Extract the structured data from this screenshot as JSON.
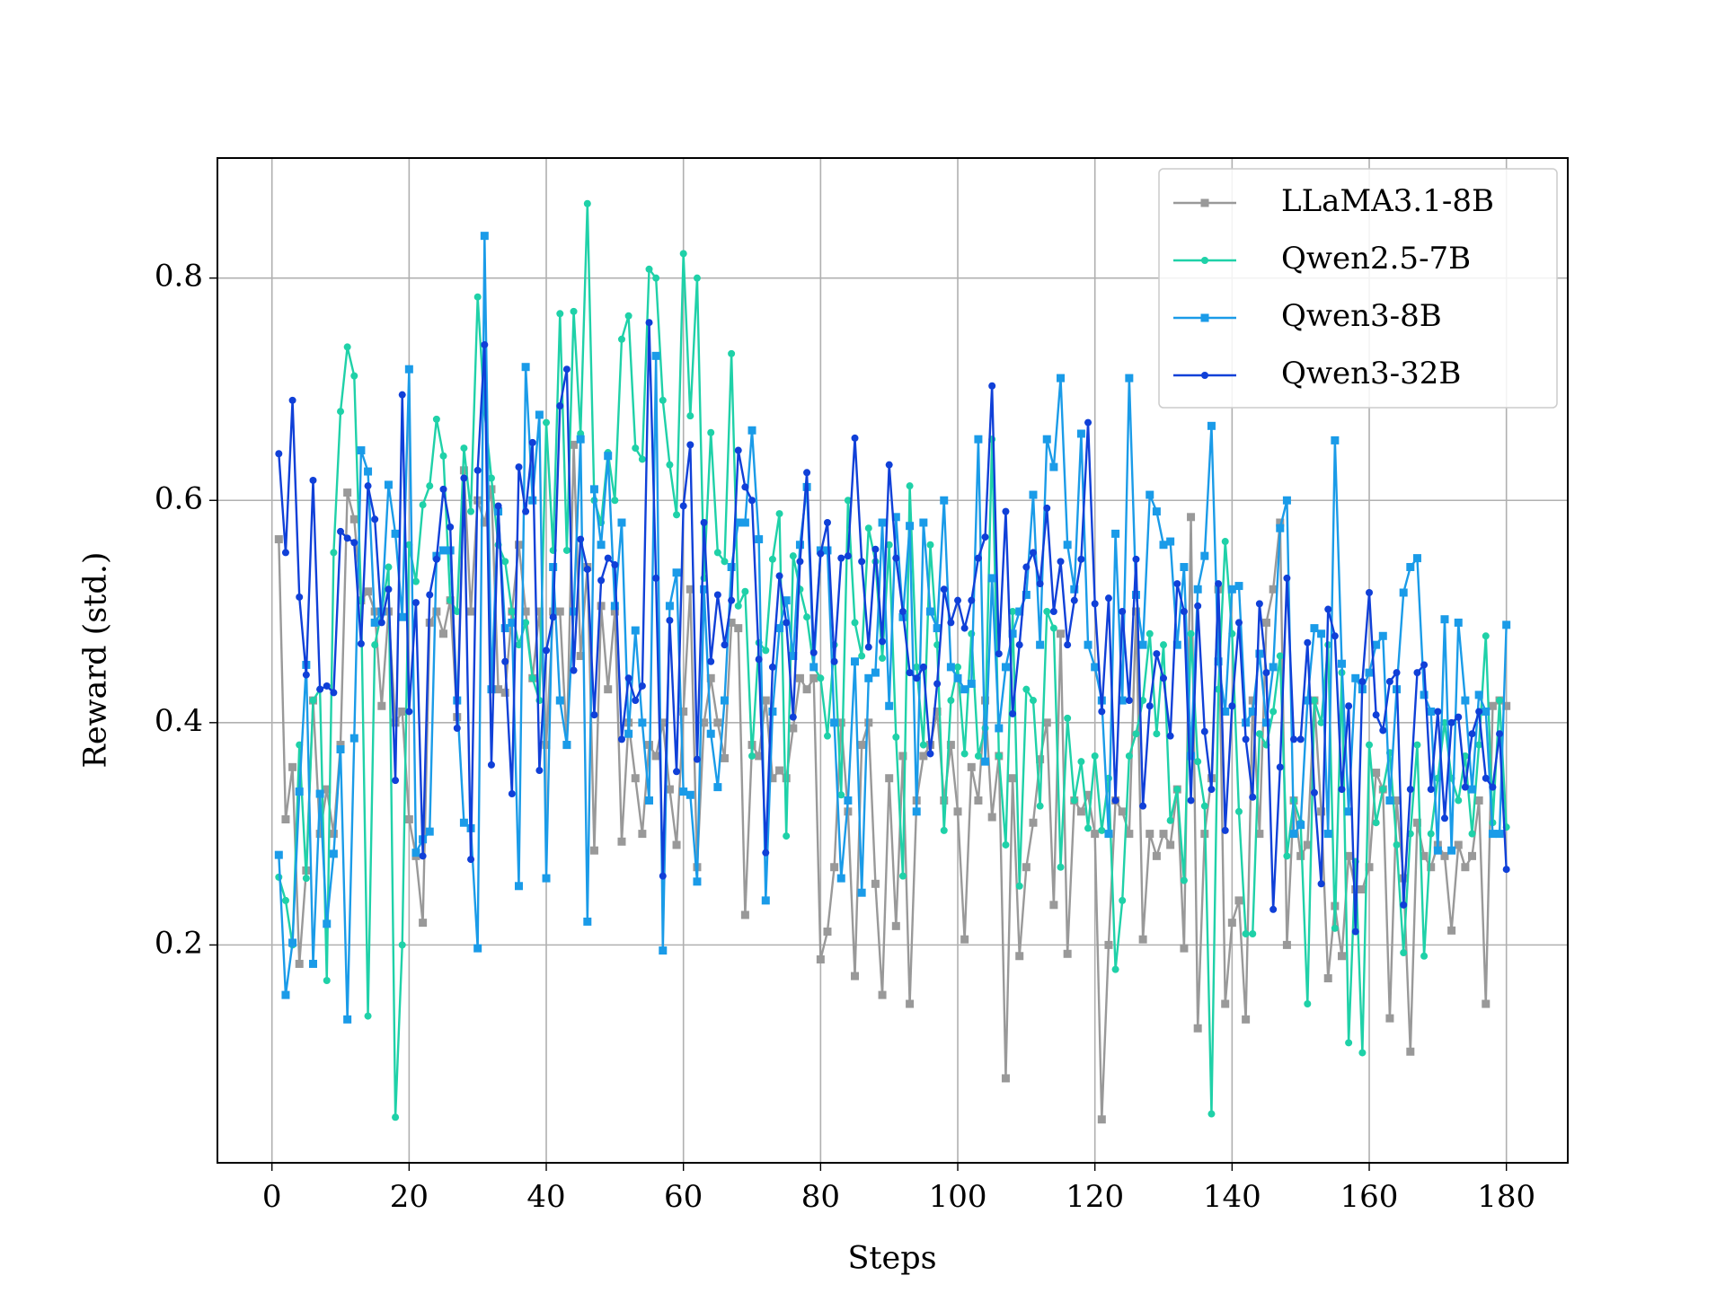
{
  "chart_data": {
    "type": "line",
    "xlabel": "Steps",
    "ylabel": "Reward (std.)",
    "xlim": [
      -7.95,
      188.95
    ],
    "ylim": [
      0.004,
      0.908
    ],
    "xticks": [
      0,
      20,
      40,
      60,
      80,
      100,
      120,
      140,
      160,
      180
    ],
    "yticks": [
      0.2,
      0.4,
      0.6,
      0.8
    ],
    "grid": true,
    "legend": "upper right",
    "x": [
      1,
      2,
      3,
      4,
      5,
      6,
      7,
      8,
      9,
      10,
      11,
      12,
      13,
      14,
      15,
      16,
      17,
      18,
      19,
      20,
      21,
      22,
      23,
      24,
      25,
      26,
      27,
      28,
      29,
      30,
      31,
      32,
      33,
      34,
      35,
      36,
      37,
      38,
      39,
      40,
      41,
      42,
      43,
      44,
      45,
      46,
      47,
      48,
      49,
      50,
      51,
      52,
      53,
      54,
      55,
      56,
      57,
      58,
      59,
      60,
      61,
      62,
      63,
      64,
      65,
      66,
      67,
      68,
      69,
      70,
      71,
      72,
      73,
      74,
      75,
      76,
      77,
      78,
      79,
      80,
      81,
      82,
      83,
      84,
      85,
      86,
      87,
      88,
      89,
      90,
      91,
      92,
      93,
      94,
      95,
      96,
      97,
      98,
      99,
      100,
      101,
      102,
      103,
      104,
      105,
      106,
      107,
      108,
      109,
      110,
      111,
      112,
      113,
      114,
      115,
      116,
      117,
      118,
      119,
      120,
      121,
      122,
      123,
      124,
      125,
      126,
      127,
      128,
      129,
      130,
      131,
      132,
      133,
      134,
      135,
      136,
      137,
      138,
      139,
      140,
      141,
      142,
      143,
      144,
      145,
      146,
      147,
      148,
      149,
      150,
      151,
      152,
      153,
      154,
      155,
      156,
      157,
      158,
      159,
      160,
      161,
      162,
      163,
      164,
      165,
      166,
      167,
      168,
      169,
      170,
      171,
      172,
      173,
      174,
      175,
      176,
      177,
      178,
      179,
      180
    ],
    "series": [
      {
        "name": "LLaMA3.1-8B",
        "color": "#999999",
        "marker": "square",
        "values": [
          0.565,
          0.313,
          0.36,
          0.183,
          0.267,
          0.42,
          0.3,
          0.34,
          0.3,
          0.38,
          0.607,
          0.583,
          0.51,
          0.518,
          0.5,
          0.415,
          0.5,
          0.4,
          0.41,
          0.313,
          0.28,
          0.22,
          0.49,
          0.5,
          0.48,
          0.51,
          0.405,
          0.627,
          0.5,
          0.6,
          0.58,
          0.61,
          0.43,
          0.427,
          0.5,
          0.56,
          0.5,
          0.44,
          0.5,
          0.38,
          0.5,
          0.5,
          0.38,
          0.65,
          0.46,
          0.54,
          0.285,
          0.505,
          0.43,
          0.5,
          0.293,
          0.4,
          0.35,
          0.3,
          0.38,
          0.37,
          0.4,
          0.34,
          0.29,
          0.41,
          0.52,
          0.27,
          0.4,
          0.44,
          0.4,
          0.368,
          0.49,
          0.485,
          0.227,
          0.38,
          0.37,
          0.42,
          0.35,
          0.357,
          0.35,
          0.395,
          0.44,
          0.43,
          0.44,
          0.187,
          0.212,
          0.27,
          0.4,
          0.32,
          0.172,
          0.38,
          0.4,
          0.255,
          0.155,
          0.35,
          0.217,
          0.37,
          0.147,
          0.33,
          0.37,
          0.38,
          0.41,
          0.33,
          0.38,
          0.32,
          0.205,
          0.36,
          0.33,
          0.42,
          0.315,
          0.37,
          0.08,
          0.35,
          0.19,
          0.27,
          0.31,
          0.367,
          0.4,
          0.236,
          0.48,
          0.192,
          0.33,
          0.32,
          0.335,
          0.3,
          0.043,
          0.2,
          0.33,
          0.32,
          0.3,
          0.5,
          0.205,
          0.3,
          0.28,
          0.3,
          0.29,
          0.34,
          0.197,
          0.585,
          0.125,
          0.3,
          0.35,
          0.52,
          0.147,
          0.22,
          0.24,
          0.133,
          0.42,
          0.3,
          0.49,
          0.52,
          0.58,
          0.2,
          0.33,
          0.28,
          0.29,
          0.42,
          0.32,
          0.17,
          0.235,
          0.19,
          0.28,
          0.25,
          0.25,
          0.27,
          0.355,
          0.34,
          0.134,
          0.33,
          0.26,
          0.104,
          0.31,
          0.28,
          0.27,
          0.29,
          0.28,
          0.213,
          0.29,
          0.27,
          0.28,
          0.33,
          0.147,
          0.415,
          0.42,
          0.415
        ]
      },
      {
        "name": "Qwen2.5-7B",
        "color": "#1fd1a8",
        "marker": "circle",
        "values": [
          0.261,
          0.24,
          0.2,
          0.38,
          0.26,
          0.42,
          0.43,
          0.168,
          0.553,
          0.68,
          0.738,
          0.712,
          0.51,
          0.136,
          0.47,
          0.5,
          0.54,
          0.045,
          0.2,
          0.56,
          0.527,
          0.596,
          0.613,
          0.673,
          0.64,
          0.51,
          0.5,
          0.647,
          0.59,
          0.783,
          0.68,
          0.62,
          0.56,
          0.545,
          0.5,
          0.47,
          0.49,
          0.44,
          0.42,
          0.67,
          0.555,
          0.768,
          0.555,
          0.77,
          0.66,
          0.867,
          0.6,
          0.58,
          0.643,
          0.6,
          0.745,
          0.766,
          0.647,
          0.637,
          0.808,
          0.8,
          0.69,
          0.632,
          0.587,
          0.822,
          0.676,
          0.8,
          0.53,
          0.661,
          0.553,
          0.545,
          0.732,
          0.505,
          0.518,
          0.37,
          0.472,
          0.465,
          0.547,
          0.588,
          0.298,
          0.55,
          0.52,
          0.495,
          0.45,
          0.44,
          0.388,
          0.47,
          0.335,
          0.6,
          0.49,
          0.46,
          0.575,
          0.545,
          0.458,
          0.56,
          0.387,
          0.262,
          0.613,
          0.45,
          0.38,
          0.56,
          0.47,
          0.303,
          0.42,
          0.45,
          0.372,
          0.48,
          0.37,
          0.395,
          0.655,
          0.37,
          0.29,
          0.5,
          0.253,
          0.43,
          0.42,
          0.325,
          0.5,
          0.485,
          0.27,
          0.404,
          0.33,
          0.365,
          0.305,
          0.37,
          0.303,
          0.35,
          0.178,
          0.24,
          0.37,
          0.39,
          0.42,
          0.48,
          0.39,
          0.47,
          0.312,
          0.34,
          0.258,
          0.48,
          0.365,
          0.325,
          0.048,
          0.43,
          0.563,
          0.48,
          0.32,
          0.21,
          0.21,
          0.39,
          0.38,
          0.41,
          0.46,
          0.28,
          0.33,
          0.31,
          0.147,
          0.42,
          0.4,
          0.47,
          0.215,
          0.445,
          0.112,
          0.275,
          0.103,
          0.38,
          0.31,
          0.34,
          0.373,
          0.29,
          0.193,
          0.3,
          0.38,
          0.19,
          0.3,
          0.35,
          0.4,
          0.35,
          0.33,
          0.37,
          0.3,
          0.38,
          0.478,
          0.31,
          0.42,
          0.306
        ]
      },
      {
        "name": "Qwen3-8B",
        "color": "#1a9be8",
        "marker": "square",
        "values": [
          0.281,
          0.155,
          0.202,
          0.338,
          0.452,
          0.183,
          0.336,
          0.219,
          0.282,
          0.376,
          0.133,
          0.386,
          0.645,
          0.626,
          0.49,
          0.5,
          0.614,
          0.57,
          0.495,
          0.718,
          0.283,
          0.295,
          0.302,
          0.55,
          0.555,
          0.555,
          0.42,
          0.31,
          0.305,
          0.197,
          0.838,
          0.43,
          0.59,
          0.485,
          0.49,
          0.253,
          0.72,
          0.6,
          0.677,
          0.26,
          0.54,
          0.42,
          0.38,
          0.5,
          0.655,
          0.221,
          0.61,
          0.56,
          0.64,
          0.505,
          0.58,
          0.39,
          0.483,
          0.4,
          0.33,
          0.73,
          0.195,
          0.505,
          0.535,
          0.338,
          0.335,
          0.257,
          0.52,
          0.39,
          0.342,
          0.42,
          0.54,
          0.58,
          0.58,
          0.663,
          0.565,
          0.24,
          0.41,
          0.485,
          0.51,
          0.46,
          0.56,
          0.612,
          0.45,
          0.555,
          0.555,
          0.4,
          0.26,
          0.33,
          0.455,
          0.247,
          0.44,
          0.445,
          0.58,
          0.415,
          0.585,
          0.495,
          0.577,
          0.32,
          0.58,
          0.5,
          0.485,
          0.6,
          0.45,
          0.44,
          0.43,
          0.435,
          0.655,
          0.365,
          0.53,
          0.395,
          0.45,
          0.48,
          0.5,
          0.515,
          0.605,
          0.47,
          0.655,
          0.63,
          0.71,
          0.56,
          0.52,
          0.66,
          0.47,
          0.45,
          0.42,
          0.3,
          0.57,
          0.42,
          0.71,
          0.515,
          0.47,
          0.605,
          0.59,
          0.56,
          0.563,
          0.47,
          0.54,
          0.37,
          0.52,
          0.55,
          0.667,
          0.455,
          0.41,
          0.52,
          0.523,
          0.4,
          0.41,
          0.462,
          0.4,
          0.45,
          0.575,
          0.6,
          0.3,
          0.308,
          0.42,
          0.485,
          0.48,
          0.3,
          0.654,
          0.453,
          0.32,
          0.44,
          0.43,
          0.445,
          0.47,
          0.478,
          0.33,
          0.43,
          0.517,
          0.54,
          0.548,
          0.425,
          0.41,
          0.285,
          0.493,
          0.285,
          0.49,
          0.42,
          0.34,
          0.425,
          0.41,
          0.3,
          0.3,
          0.488
        ]
      },
      {
        "name": "Qwen3-32B",
        "color": "#1040d8",
        "marker": "circle",
        "values": [
          0.642,
          0.553,
          0.69,
          0.513,
          0.443,
          0.618,
          0.43,
          0.433,
          0.427,
          0.572,
          0.566,
          0.562,
          0.471,
          0.613,
          0.583,
          0.49,
          0.52,
          0.348,
          0.695,
          0.41,
          0.508,
          0.28,
          0.515,
          0.547,
          0.61,
          0.576,
          0.395,
          0.62,
          0.277,
          0.627,
          0.74,
          0.362,
          0.595,
          0.455,
          0.336,
          0.63,
          0.59,
          0.652,
          0.357,
          0.465,
          0.495,
          0.685,
          0.718,
          0.447,
          0.565,
          0.538,
          0.407,
          0.528,
          0.548,
          0.542,
          0.385,
          0.44,
          0.42,
          0.433,
          0.76,
          0.53,
          0.262,
          0.492,
          0.356,
          0.595,
          0.65,
          0.367,
          0.58,
          0.455,
          0.515,
          0.47,
          0.51,
          0.645,
          0.612,
          0.6,
          0.457,
          0.283,
          0.45,
          0.532,
          0.49,
          0.405,
          0.545,
          0.625,
          0.463,
          0.552,
          0.58,
          0.455,
          0.548,
          0.55,
          0.656,
          0.545,
          0.468,
          0.556,
          0.473,
          0.632,
          0.548,
          0.5,
          0.445,
          0.44,
          0.45,
          0.372,
          0.435,
          0.52,
          0.49,
          0.51,
          0.485,
          0.51,
          0.548,
          0.567,
          0.703,
          0.462,
          0.59,
          0.408,
          0.47,
          0.54,
          0.553,
          0.525,
          0.593,
          0.5,
          0.545,
          0.47,
          0.51,
          0.547,
          0.67,
          0.507,
          0.41,
          0.512,
          0.33,
          0.5,
          0.42,
          0.547,
          0.325,
          0.415,
          0.462,
          0.44,
          0.388,
          0.525,
          0.5,
          0.33,
          0.505,
          0.392,
          0.34,
          0.525,
          0.303,
          0.415,
          0.49,
          0.385,
          0.333,
          0.507,
          0.445,
          0.232,
          0.36,
          0.53,
          0.385,
          0.385,
          0.472,
          0.337,
          0.255,
          0.502,
          0.478,
          0.34,
          0.415,
          0.212,
          0.437,
          0.517,
          0.407,
          0.393,
          0.437,
          0.445,
          0.236,
          0.34,
          0.445,
          0.452,
          0.34,
          0.41,
          0.314,
          0.4,
          0.405,
          0.342,
          0.39,
          0.41,
          0.35,
          0.342,
          0.39,
          0.268
        ]
      }
    ]
  }
}
